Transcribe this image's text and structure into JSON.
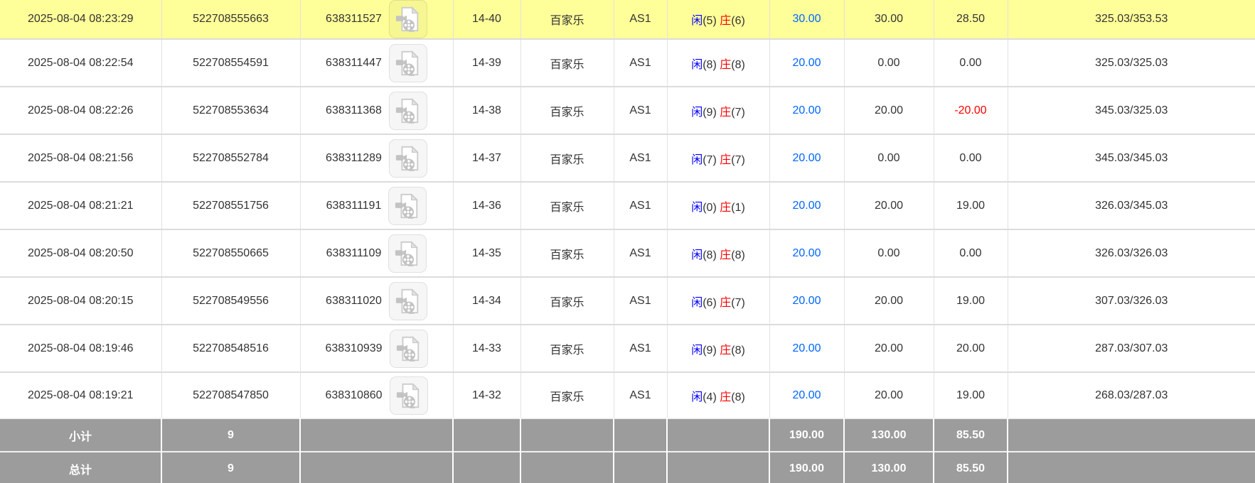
{
  "colors": {
    "highlight_yellow": "#ffff99",
    "summary_gray": "#9c9c9c",
    "player_blue": "#0000ff",
    "banker_red": "#ff0000",
    "amount_blue": "#0066ff",
    "loss_red": "#ff0000",
    "text_color": "#333333",
    "grid_line": "#e2e2e2",
    "row_line": "#dcdcdc"
  },
  "legend": {
    "player_label": "闲",
    "banker_label": "庄",
    "game_name": "百家乐"
  },
  "rows": [
    {
      "time": "2025-08-04 08:23:29",
      "bet_id": "522708555663",
      "video_id": "638311527",
      "round": "14-40",
      "game": "百家乐",
      "table": "AS1",
      "player_score": "5",
      "banker_score": "6",
      "bet": "30.00",
      "valid": "30.00",
      "winloss": "28.50",
      "balance": "325.03/353.53",
      "highlighted": true
    },
    {
      "time": "2025-08-04 08:22:54",
      "bet_id": "522708554591",
      "video_id": "638311447",
      "round": "14-39",
      "game": "百家乐",
      "table": "AS1",
      "player_score": "8",
      "banker_score": "8",
      "bet": "20.00",
      "valid": "0.00",
      "winloss": "0.00",
      "balance": "325.03/325.03",
      "highlighted": false
    },
    {
      "time": "2025-08-04 08:22:26",
      "bet_id": "522708553634",
      "video_id": "638311368",
      "round": "14-38",
      "game": "百家乐",
      "table": "AS1",
      "player_score": "9",
      "banker_score": "7",
      "bet": "20.00",
      "valid": "20.00",
      "winloss": "-20.00",
      "balance": "345.03/325.03",
      "highlighted": false
    },
    {
      "time": "2025-08-04 08:21:56",
      "bet_id": "522708552784",
      "video_id": "638311289",
      "round": "14-37",
      "game": "百家乐",
      "table": "AS1",
      "player_score": "7",
      "banker_score": "7",
      "bet": "20.00",
      "valid": "0.00",
      "winloss": "0.00",
      "balance": "345.03/345.03",
      "highlighted": false
    },
    {
      "time": "2025-08-04 08:21:21",
      "bet_id": "522708551756",
      "video_id": "638311191",
      "round": "14-36",
      "game": "百家乐",
      "table": "AS1",
      "player_score": "0",
      "banker_score": "1",
      "bet": "20.00",
      "valid": "20.00",
      "winloss": "19.00",
      "balance": "326.03/345.03",
      "highlighted": false
    },
    {
      "time": "2025-08-04 08:20:50",
      "bet_id": "522708550665",
      "video_id": "638311109",
      "round": "14-35",
      "game": "百家乐",
      "table": "AS1",
      "player_score": "8",
      "banker_score": "8",
      "bet": "20.00",
      "valid": "0.00",
      "winloss": "0.00",
      "balance": "326.03/326.03",
      "highlighted": false
    },
    {
      "time": "2025-08-04 08:20:15",
      "bet_id": "522708549556",
      "video_id": "638311020",
      "round": "14-34",
      "game": "百家乐",
      "table": "AS1",
      "player_score": "6",
      "banker_score": "7",
      "bet": "20.00",
      "valid": "20.00",
      "winloss": "19.00",
      "balance": "307.03/326.03",
      "highlighted": false
    },
    {
      "time": "2025-08-04 08:19:46",
      "bet_id": "522708548516",
      "video_id": "638310939",
      "round": "14-33",
      "game": "百家乐",
      "table": "AS1",
      "player_score": "9",
      "banker_score": "8",
      "bet": "20.00",
      "valid": "20.00",
      "winloss": "20.00",
      "balance": "287.03/307.03",
      "highlighted": false
    },
    {
      "time": "2025-08-04 08:19:21",
      "bet_id": "522708547850",
      "video_id": "638310860",
      "round": "14-32",
      "game": "百家乐",
      "table": "AS1",
      "player_score": "4",
      "banker_score": "8",
      "bet": "20.00",
      "valid": "20.00",
      "winloss": "19.00",
      "balance": "268.03/287.03",
      "highlighted": false
    }
  ],
  "summary": {
    "subtotal": {
      "label": "小计",
      "count": "9",
      "bet": "190.00",
      "valid": "130.00",
      "winloss": "85.50"
    },
    "grand_total": {
      "label": "总计",
      "count": "9",
      "bet": "190.00",
      "valid": "130.00",
      "winloss": "85.50"
    }
  }
}
